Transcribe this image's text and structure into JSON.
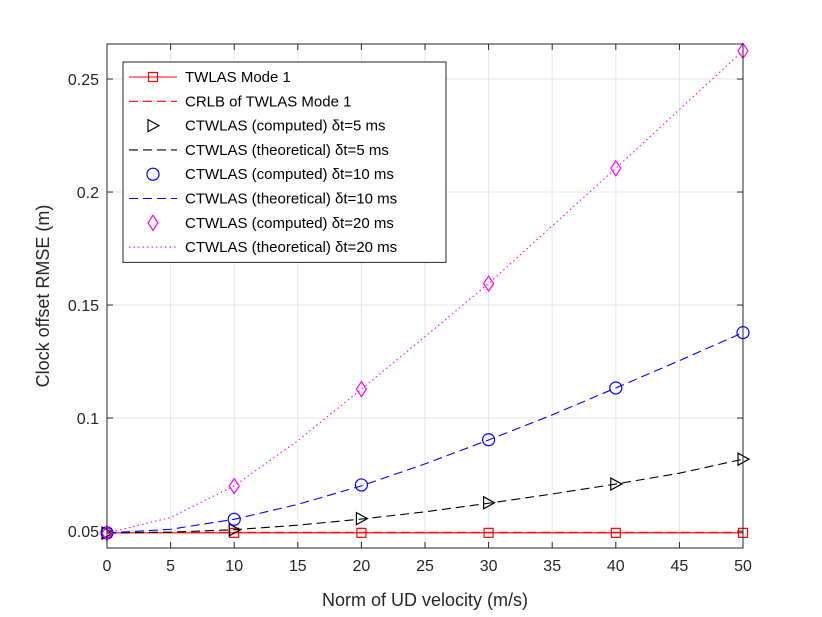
{
  "chart_data": {
    "type": "line",
    "title": "",
    "xlabel": "Norm of UD velocity (m/s)",
    "ylabel": "Clock offset RMSE (m)",
    "xlim": [
      0,
      50
    ],
    "ylim": [
      0.0425,
      0.2655
    ],
    "xticks": [
      0,
      5,
      10,
      15,
      20,
      25,
      30,
      35,
      40,
      45,
      50
    ],
    "xtick_labels": [
      "0",
      "5",
      "10",
      "15",
      "20",
      "25",
      "30",
      "35",
      "40",
      "45",
      "50"
    ],
    "yticks": [
      0.05,
      0.1,
      0.15,
      0.2,
      0.25
    ],
    "ytick_labels": [
      "0.05",
      "0.1",
      "0.15",
      "0.2",
      "0.25"
    ],
    "grid": true,
    "legend_position": "top-left",
    "series": [
      {
        "name": "TWLAS Mode 1",
        "color": "#ff0000",
        "line": "solid",
        "marker": "square",
        "x": [
          0,
          10,
          20,
          30,
          40,
          50
        ],
        "values": [
          0.0492,
          0.0492,
          0.0492,
          0.0492,
          0.0492,
          0.0492
        ]
      },
      {
        "name": "CRLB of TWLAS Mode 1",
        "color": "#ff0000",
        "line": "dashed",
        "marker": "none",
        "x": [
          0,
          10,
          20,
          30,
          40,
          50
        ],
        "values": [
          0.0494,
          0.0494,
          0.0494,
          0.0494,
          0.0494,
          0.0494
        ]
      },
      {
        "name": "CTWLAS (computed) δt=5 ms",
        "color": "#000000",
        "line": "none",
        "marker": "triangle-right",
        "x": [
          0,
          10,
          20,
          30,
          40,
          50
        ],
        "values": [
          0.0491,
          0.0505,
          0.0555,
          0.0625,
          0.0708,
          0.0818
        ]
      },
      {
        "name": "CTWLAS (theoretical) δt=5 ms",
        "color": "#000000",
        "line": "dashed",
        "marker": "none",
        "x": [
          0,
          5,
          10,
          15,
          20,
          25,
          30,
          35,
          40,
          45,
          50
        ],
        "values": [
          0.0491,
          0.0495,
          0.0506,
          0.0526,
          0.0553,
          0.0585,
          0.0623,
          0.0664,
          0.0708,
          0.0756,
          0.0818
        ]
      },
      {
        "name": "CTWLAS (computed) δt=10 ms",
        "color": "#0000ff",
        "line": "none",
        "marker": "circle",
        "x": [
          0,
          10,
          20,
          30,
          40,
          50
        ],
        "values": [
          0.0492,
          0.0552,
          0.0704,
          0.0904,
          0.1133,
          0.1378
        ]
      },
      {
        "name": "CTWLAS (theoretical) δt=10 ms",
        "color": "#0000ff",
        "line": "dashed",
        "marker": "none",
        "x": [
          0,
          5,
          10,
          15,
          20,
          25,
          30,
          35,
          40,
          45,
          50
        ],
        "values": [
          0.0491,
          0.0508,
          0.0552,
          0.0618,
          0.07,
          0.0797,
          0.0903,
          0.1014,
          0.1133,
          0.1254,
          0.1378
        ]
      },
      {
        "name": "CTWLAS (computed) δt=20 ms",
        "color": "#ff00ff",
        "line": "none",
        "marker": "diamond",
        "x": [
          0,
          10,
          20,
          30,
          40,
          50
        ],
        "values": [
          0.0491,
          0.0699,
          0.1128,
          0.1595,
          0.2105,
          0.2625
        ]
      },
      {
        "name": "CTWLAS (theoretical) δt=20 ms",
        "color": "#ff00ff",
        "line": "dotted",
        "marker": "none",
        "x": [
          0,
          5,
          10,
          15,
          20,
          25,
          30,
          35,
          40,
          45,
          50
        ],
        "values": [
          0.0491,
          0.056,
          0.07,
          0.09,
          0.1128,
          0.136,
          0.1595,
          0.185,
          0.2105,
          0.2365,
          0.2625
        ]
      }
    ]
  }
}
